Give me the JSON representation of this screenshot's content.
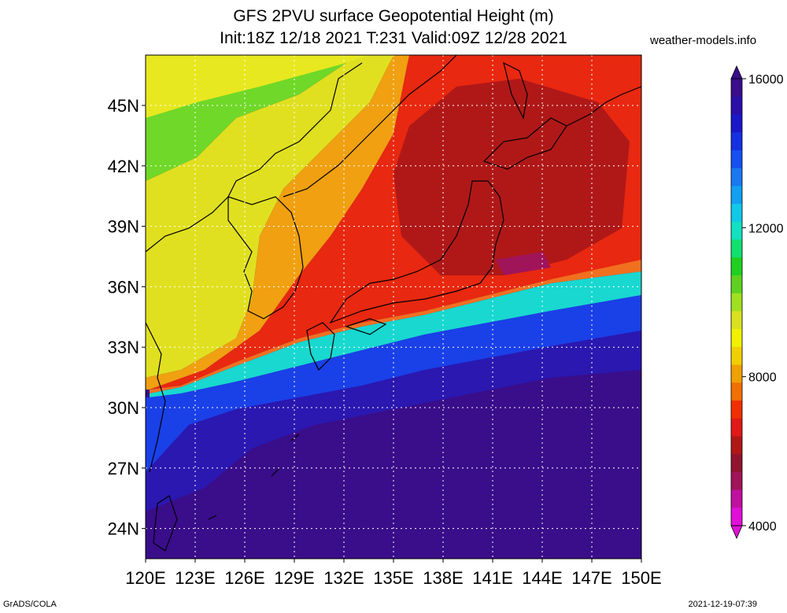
{
  "title_line1": "GFS 2PVU surface Geopotential Height (m)",
  "title_line2": "Init:18Z 12/18 2021 T:231 Valid:09Z 12/28 2021",
  "site": "weather-models.info",
  "footer_left": "GrADS/COLA",
  "footer_right": "2021-12-19-07:39",
  "map": {
    "lon_labels": [
      "120E",
      "123E",
      "126E",
      "129E",
      "132E",
      "135E",
      "138E",
      "141E",
      "144E",
      "147E",
      "150E"
    ],
    "lat_labels": [
      "45N",
      "42N",
      "39N",
      "36N",
      "33N",
      "30N",
      "27N",
      "24N"
    ],
    "lon_range": [
      120,
      150
    ],
    "lat_range": [
      22.5,
      47.5
    ]
  },
  "colorbar": {
    "labels": [
      "16000",
      "12000",
      "8000",
      "4000"
    ],
    "colors": [
      "#3a0d8a",
      "#2a10a8",
      "#1a18c8",
      "#1530e0",
      "#1650f0",
      "#1a78f0",
      "#12a0f0",
      "#10c8e8",
      "#12e0c0",
      "#10e070",
      "#20d020",
      "#60d020",
      "#a0e020",
      "#d8e020",
      "#f0f000",
      "#f0d000",
      "#f0a000",
      "#f07000",
      "#f03000",
      "#e01818",
      "#b01818",
      "#901430",
      "#a0145a",
      "#c010a0",
      "#e010d8"
    ]
  }
}
